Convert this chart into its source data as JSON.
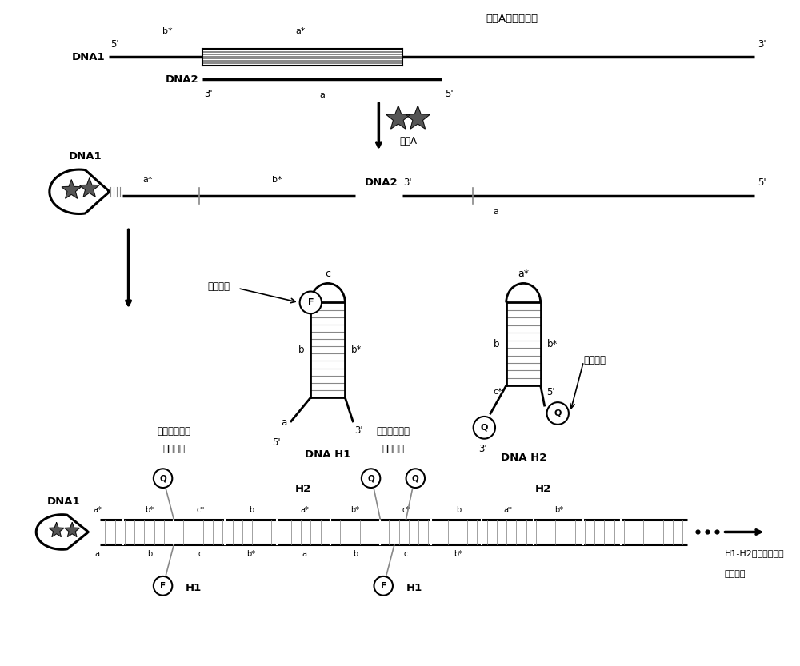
{
  "bg_color": "#ffffff",
  "line_color": "#000000",
  "gray_color": "#888888",
  "star_color": "#555555",
  "label_top1": "双酚A的核酸适体",
  "label_bpa": "双酚A",
  "label_fluoro": "荧光基团",
  "label_quench": "淡灭基团",
  "label_fret1": "荧光能量转移",
  "label_quench1": "淡灭荧光",
  "label_fret2": "荧光能量转移",
  "label_quench2": "淡灭荧光",
  "label_repeat": "H1-H2不断重复组装",
  "label_quench3": "淡灭荧光"
}
